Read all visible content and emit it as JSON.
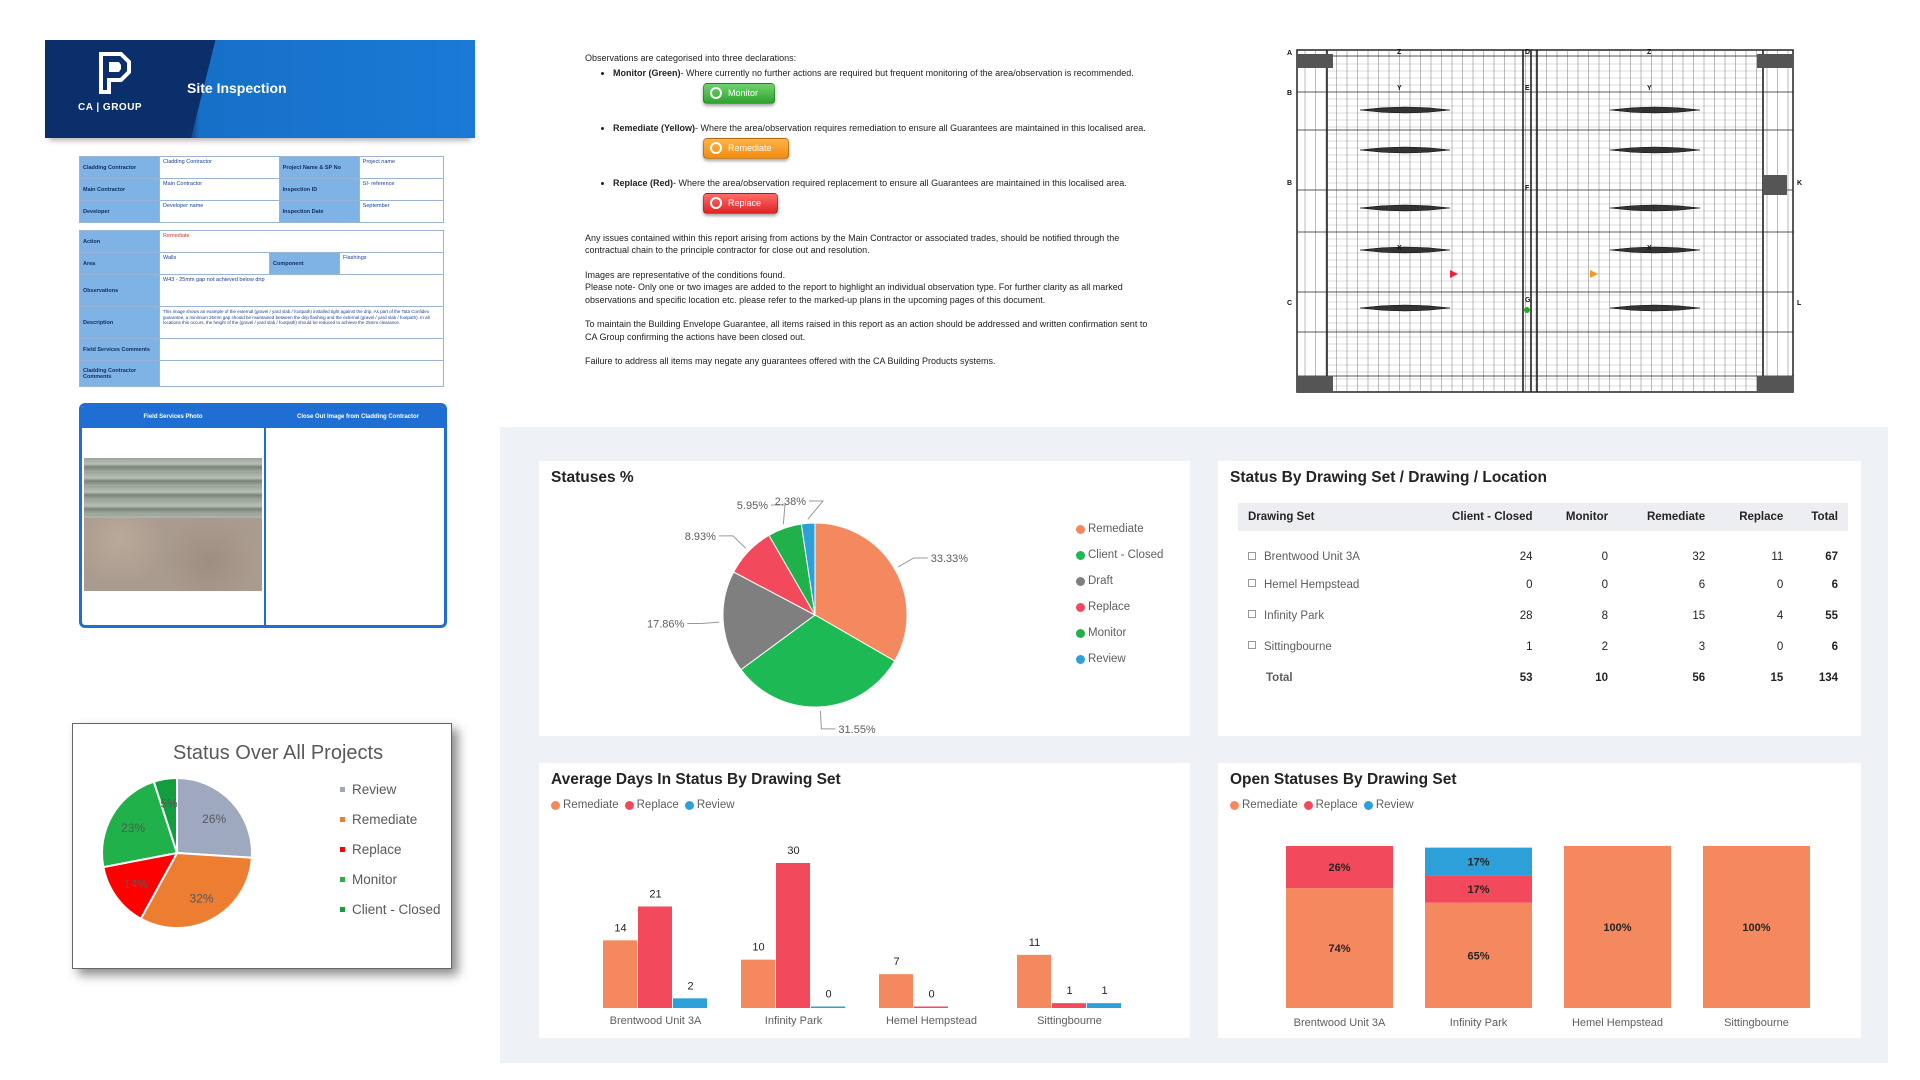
{
  "form": {
    "brand_text": "CA | GROUP",
    "title": "Site Inspection",
    "rows1": [
      {
        "l1": "Cladding Contractor",
        "v1": "Cladding Contractor",
        "l2": "Project Name & SP No",
        "v2": "Project name"
      },
      {
        "l1": "Main Contractor",
        "v1": "Main Contractor",
        "l2": "Inspection ID",
        "v2": "SI- reference"
      },
      {
        "l1": "Developer",
        "v1": "Developer name",
        "l2": "Inspection Date",
        "v2": "September"
      }
    ],
    "action_label": "Action",
    "action_value": "Remediate",
    "area_label": "Area",
    "area_value": "Walls",
    "component_label": "Component",
    "component_value": "Flashings",
    "observations_label": "Observations",
    "observations_value": "W43 - 25mm gap not achieved below drip",
    "description_label": "Description",
    "description_value": "This image shows an example of the external (gravel / yard slab / footpath) installed tight against the drip. As part of the Tata Confidex guarantee, a minimum 25mm gap should be maintained between the drip flashing and the external (gravel / yard slab / footpath). In all locations this occurs, the height of the (gravel / yard slab / footpath) should be reduced to achieve the 25mm clearance.",
    "field_comments_label": "Field Services Comments",
    "cladding_comments_label": "Cladding Contractor Comments",
    "photo_header": "Field Services Photo",
    "closeout_header": "Close Out Image from Cladding Contractor"
  },
  "instructions": {
    "intro": "Observations are categorised into three declarations:",
    "items": [
      {
        "label": "Monitor (Green)",
        "text": "- Where currently no further actions are required but frequent monitoring of the area/observation is recommended.",
        "button": "Monitor"
      },
      {
        "label": "Remediate (Yellow)",
        "text": "- Where the area/observation requires remediation to ensure all Guarantees are maintained in this localised area.",
        "button": "Remediate"
      },
      {
        "label": "Replace (Red)",
        "text": "- Where the area/observation required replacement to ensure all Guarantees are maintained in this localised area.",
        "button": "Replace"
      }
    ],
    "para1": "Any issues contained within this report arising from actions by the Main Contractor or associated trades, should be notified through the contractual chain to the principle contractor for close out and resolution.",
    "para2a": "Images are representative of the conditions found.",
    "para2b": "Please note- Only one or two images are added to the report to highlight an individual observation type. For further clarity as all marked observations and specific location etc. please refer to the marked-up plans in the upcoming pages of this document.",
    "para3": "To maintain the Building Envelope Guarantee, all items raised in this report as an action should be addressed and written confirmation sent to CA Group confirming the actions have been closed out.",
    "para4": "Failure to address all items may negate any guarantees offered with the CA Building Products systems."
  },
  "plan": {
    "grid_letters": [
      "A",
      "B",
      "B",
      "C",
      "K",
      "L"
    ],
    "column_letters": [
      "Z",
      "Y",
      "X",
      "Z",
      "Y",
      "X"
    ],
    "mid_letters": [
      "D",
      "E",
      "F",
      "G"
    ]
  },
  "legacy_chart": {
    "title": "Status Over All Projects",
    "legend": [
      {
        "label": "Review",
        "color": "#9ea9bf"
      },
      {
        "label": "Remediate",
        "color": "#ed7d31"
      },
      {
        "label": "Replace",
        "color": "#ff0000"
      },
      {
        "label": "Monitor",
        "color": "#21b14b"
      },
      {
        "label": "Client - Closed",
        "color": "#129e3e"
      }
    ]
  },
  "dashboard": {
    "statuses_title": "Statuses %",
    "table_title": "Status By Drawing Set / Drawing / Location",
    "avg_title": "Average Days In Status By Drawing Set",
    "open_title": "Open Statuses By Drawing Set",
    "table": {
      "headers": [
        "Drawing Set",
        "Client - Closed",
        "Monitor",
        "Remediate",
        "Replace",
        "Total"
      ],
      "rows": [
        {
          "name": "Brentwood Unit 3A",
          "values": [
            "24",
            "0",
            "32",
            "11",
            "67"
          ]
        },
        {
          "name": "Hemel Hempstead",
          "values": [
            "0",
            "0",
            "6",
            "0",
            "6"
          ]
        },
        {
          "name": "Infinity Park",
          "values": [
            "28",
            "8",
            "15",
            "4",
            "55"
          ]
        },
        {
          "name": "Sittingbourne",
          "values": [
            "1",
            "2",
            "3",
            "0",
            "6"
          ]
        }
      ],
      "total": {
        "name": "Total",
        "values": [
          "53",
          "10",
          "56",
          "15",
          "134"
        ]
      }
    },
    "colors": {
      "remediate": "#f4895f",
      "replace": "#f2495c",
      "review": "#2d9fd9",
      "client_closed": "#1db954",
      "draft": "#7f7f7f",
      "monitor": "#21b14b"
    }
  },
  "chart_data": [
    {
      "type": "pie",
      "title": "Statuses %",
      "categories": [
        "Remediate",
        "Client - Closed",
        "Draft",
        "Replace",
        "Monitor",
        "Review"
      ],
      "values": [
        33.33,
        31.55,
        17.86,
        8.93,
        5.95,
        2.38
      ],
      "labels": [
        "33.33%",
        "31.55%",
        "17.86%",
        "8.93%",
        "5.95%",
        "2.38%"
      ],
      "colors": [
        "#f4895f",
        "#1db954",
        "#7f7f7f",
        "#f2495c",
        "#21b14b",
        "#2d9fd9"
      ]
    },
    {
      "type": "pie",
      "title": "Status Over All Projects",
      "categories": [
        "Review",
        "Remediate",
        "Replace",
        "Monitor",
        "Client - Closed"
      ],
      "values": [
        26,
        32,
        14,
        23,
        5
      ],
      "labels": [
        "26%",
        "32%",
        "14%",
        "23%",
        "5%"
      ],
      "colors": [
        "#9ea9bf",
        "#ed7d31",
        "#ff0000",
        "#21b14b",
        "#129e3e"
      ]
    },
    {
      "type": "bar",
      "title": "Average Days In Status By Drawing Set",
      "categories": [
        "Brentwood Unit 3A",
        "Infinity Park",
        "Hemel Hempstead",
        "Sittingbourne"
      ],
      "series": [
        {
          "name": "Remediate",
          "values": [
            14,
            10,
            7,
            11
          ],
          "color": "#f4895f"
        },
        {
          "name": "Replace",
          "values": [
            21,
            30,
            0,
            1
          ],
          "color": "#f2495c"
        },
        {
          "name": "Review",
          "values": [
            2,
            0,
            null,
            1
          ],
          "color": "#2d9fd9"
        }
      ],
      "ylim": [
        0,
        30
      ]
    },
    {
      "type": "bar",
      "stacked": "percent",
      "title": "Open Statuses By Drawing Set",
      "categories": [
        "Brentwood Unit 3A",
        "Infinity Park",
        "Hemel Hempstead",
        "Sittingbourne"
      ],
      "series": [
        {
          "name": "Remediate",
          "values": [
            74,
            65,
            100,
            100
          ],
          "color": "#f4895f"
        },
        {
          "name": "Replace",
          "values": [
            26,
            17,
            0,
            0
          ],
          "color": "#f2495c"
        },
        {
          "name": "Review",
          "values": [
            0,
            17,
            0,
            0
          ],
          "color": "#2d9fd9"
        }
      ],
      "labels": [
        [
          "74%",
          "26%",
          ""
        ],
        [
          "65%",
          "17%",
          "17%"
        ],
        [
          "100%",
          "",
          ""
        ],
        [
          "100%",
          "",
          ""
        ]
      ]
    }
  ]
}
